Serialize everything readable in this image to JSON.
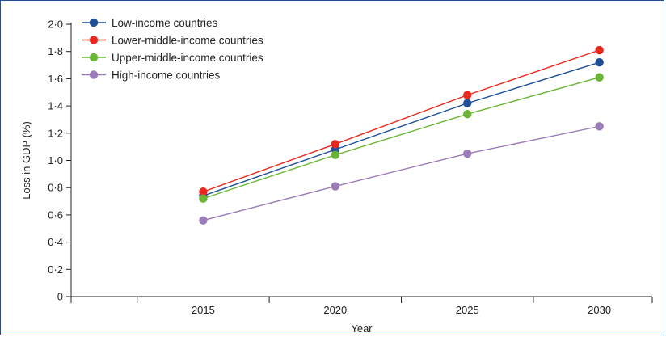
{
  "chart_data": {
    "type": "line",
    "title": "",
    "xlabel": "Year",
    "ylabel": "Loss in GDP (%)",
    "x": [
      2015,
      2020,
      2025,
      2030
    ],
    "x_tick_labels": [
      "2015",
      "2020",
      "2025",
      "2030"
    ],
    "xlim": [
      2010,
      2032
    ],
    "ylim": [
      0,
      2.0
    ],
    "y_ticks": [
      0,
      0.2,
      0.4,
      0.6,
      0.8,
      1.0,
      1.2,
      1.4,
      1.6,
      1.8,
      2.0
    ],
    "y_tick_labels": [
      "0",
      "0·2",
      "0·4",
      "0·6",
      "0·8",
      "1·0",
      "1·2",
      "1·4",
      "1·6",
      "1·8",
      "2·0"
    ],
    "grid": false,
    "legend_position": "top-left",
    "series": [
      {
        "name": "Low-income countries",
        "color": "#1f4e96",
        "values": [
          0.74,
          1.08,
          1.42,
          1.72
        ]
      },
      {
        "name": "Lower-middle-income countries",
        "color": "#e8281e",
        "values": [
          0.77,
          1.12,
          1.48,
          1.81
        ]
      },
      {
        "name": "Upper-middle-income countries",
        "color": "#6ab534",
        "values": [
          0.72,
          1.04,
          1.34,
          1.61
        ]
      },
      {
        "name": "High-income countries",
        "color": "#9b7bb8",
        "values": [
          0.56,
          0.81,
          1.05,
          1.25
        ]
      }
    ]
  }
}
